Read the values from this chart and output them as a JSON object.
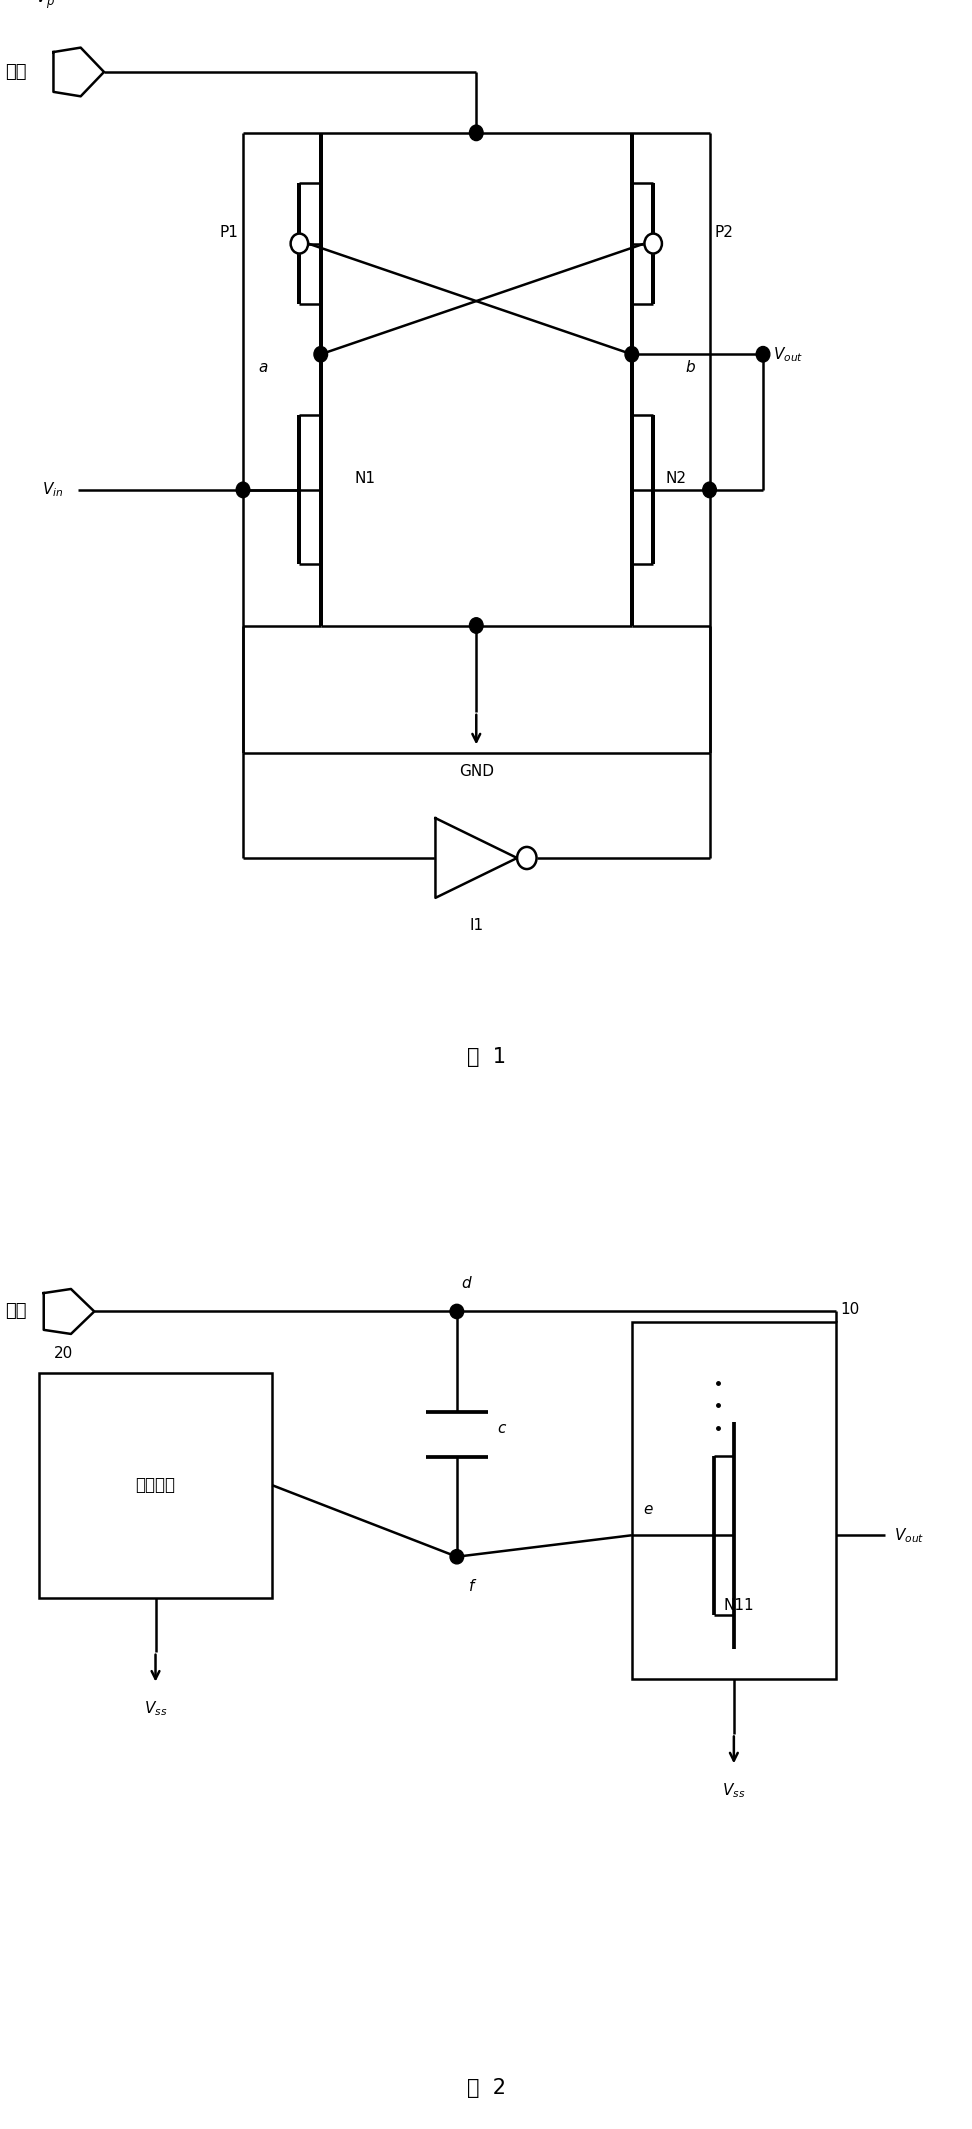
{
  "fig_width": 9.72,
  "fig_height": 21.29,
  "bg_color": "#ffffff",
  "line_color": "#000000",
  "lw": 1.8,
  "fig1_title": "图  1",
  "fig2_title": "图  2",
  "pad_cn": "衬垫",
  "yajiang": "压降电路"
}
